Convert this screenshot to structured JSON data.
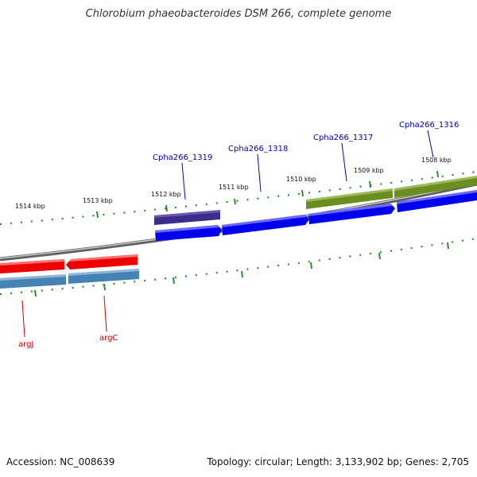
{
  "title": "Chlorobium phaeobacteroides DSM 266, complete genome",
  "footer": {
    "accession": "Accession: NC_008639",
    "summary": "Topology: circular; Length: 3,133,902 bp; Genes: 2,705"
  },
  "colors": {
    "backbone": "#808080",
    "tick": "#008000",
    "forward_gene": "#0000ee",
    "reverse_gene": "#ee0000",
    "forward_label": "#0000aa",
    "reverse_label": "#cc0000",
    "cds_forward_dark": "#3c2d8a",
    "cds_forward_green": "#6b8e23",
    "cds_reverse_steel": "#4682b4"
  },
  "tick_labels": [
    "1514 kbp",
    "1513 kbp",
    "1512 kbp",
    "1511 kbp",
    "1510 kbp",
    "1509 kbp",
    "1508 kbp"
  ],
  "genes": {
    "forward": [
      {
        "label": "Cpha266_1319"
      },
      {
        "label": "Cpha266_1318"
      },
      {
        "label": "Cpha266_1317"
      },
      {
        "label": "Cpha266_1316"
      }
    ],
    "reverse": [
      {
        "label": "argJ"
      },
      {
        "label": "argC"
      }
    ]
  }
}
